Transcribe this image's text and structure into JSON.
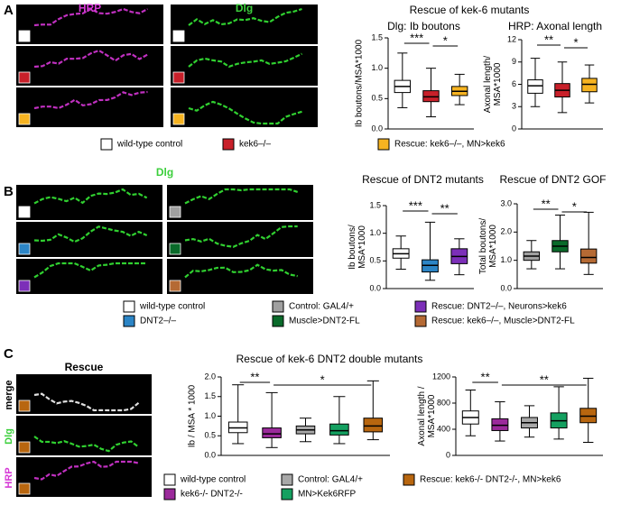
{
  "panels": [
    {
      "label": "A",
      "images": {
        "titles": [
          "HRP",
          "Dlg"
        ],
        "title_colors": [
          "#d63ad6",
          "#3ccf3c"
        ],
        "columns": [
          {
            "row_colors": [
              "#ffffff",
              "#c8202a",
              "#f6b321"
            ],
            "stains": [
              "#c030c0",
              "#c030c0",
              "#c030c0"
            ]
          },
          {
            "row_colors": [
              "#ffffff",
              "#c8202a",
              "#f6b321"
            ],
            "stains": [
              "#30d030",
              "#30d030",
              "#30d030"
            ]
          }
        ]
      },
      "title": "Rescue of kek-6 mutants",
      "charts": [
        {
          "type": "box",
          "title": "Dlg: Ib boutons",
          "y_label": [
            "Ib boutons/MSA*1000"
          ],
          "ylim": [
            0,
            1.5
          ],
          "yticks": [
            {
              "value": 0,
              "label": "0.0"
            },
            0.5,
            {
              "value": 1,
              "label": "1.0"
            },
            1.5
          ],
          "boxes": [
            {
              "color": "#ffffff",
              "min": 0.35,
              "q1": 0.6,
              "median": 0.7,
              "q3": 0.8,
              "max": 1.25
            },
            {
              "color": "#c8202a",
              "min": 0.2,
              "q1": 0.45,
              "median": 0.53,
              "q3": 0.63,
              "max": 1.0
            },
            {
              "color": "#f6b321",
              "min": 0.4,
              "q1": 0.55,
              "median": 0.62,
              "q3": 0.7,
              "max": 0.9
            }
          ],
          "significance": [
            "***",
            "*"
          ]
        },
        {
          "type": "box",
          "title": "HRP: Axonal length",
          "y_label": [
            "Axonal length/",
            "MSA*1000"
          ],
          "ylim": [
            0,
            12
          ],
          "yticks": [
            0,
            3,
            6,
            9,
            12
          ],
          "boxes": [
            {
              "color": "#ffffff",
              "min": 3,
              "q1": 4.8,
              "median": 5.8,
              "q3": 6.6,
              "max": 9.5
            },
            {
              "color": "#c8202a",
              "min": 2.2,
              "q1": 4.3,
              "median": 5.2,
              "q3": 6.1,
              "max": 9
            },
            {
              "color": "#f6b321",
              "min": 3.5,
              "q1": 5,
              "median": 6,
              "q3": 6.8,
              "max": 8.6
            }
          ],
          "significance": [
            "**",
            "*"
          ]
        }
      ],
      "legend": [
        {
          "name": "wild-type control",
          "color": "#ffffff"
        },
        {
          "name": "kek6–/–",
          "color": "#c8202a"
        },
        {
          "name": "Rescue:  kek6–/–, MN>kek6",
          "color": "#f6b321"
        }
      ]
    },
    {
      "label": "B",
      "images": {
        "titles": [
          "Dlg"
        ],
        "title_colors": [
          "#3ccf3c"
        ],
        "columns": [
          {
            "row_colors": [
              "#ffffff",
              "#2c85c6",
              "#7c2fb8"
            ],
            "stains": [
              "#30d030",
              "#30d030",
              "#30d030"
            ]
          },
          {
            "row_colors": [
              "#a0a0a0",
              "#0a6a2a",
              "#b56a34"
            ],
            "stains": [
              "#30d030",
              "#30d030",
              "#30d030"
            ]
          }
        ]
      },
      "charts": [
        {
          "type": "box",
          "title": "Rescue of DNT2 mutants",
          "y_label": [
            "Ib boutons/",
            "MSA*1000"
          ],
          "ylim": [
            0,
            1.5
          ],
          "yticks": [
            {
              "value": 0,
              "label": "0.0"
            },
            0.5,
            {
              "value": 1,
              "label": "1.0"
            },
            1.5
          ],
          "boxes": [
            {
              "color": "#ffffff",
              "min": 0.35,
              "q1": 0.55,
              "median": 0.63,
              "q3": 0.72,
              "max": 0.95
            },
            {
              "color": "#2c85c6",
              "min": 0.15,
              "q1": 0.3,
              "median": 0.42,
              "q3": 0.52,
              "max": 1.2
            },
            {
              "color": "#7c2fb8",
              "min": 0.25,
              "q1": 0.45,
              "median": 0.58,
              "q3": 0.72,
              "max": 0.9
            }
          ],
          "significance": [
            "***",
            "**"
          ]
        },
        {
          "type": "box",
          "title": "Rescue of DNT2 GOF",
          "y_label": [
            "Total boutons/",
            "MSA*1000"
          ],
          "ylim": [
            0,
            3
          ],
          "yticks": [
            {
              "value": 0,
              "label": "0.0"
            },
            {
              "value": 1,
              "label": "1.0"
            },
            {
              "value": 2,
              "label": "2.0"
            },
            {
              "value": 3,
              "label": "3.0"
            }
          ],
          "boxes": [
            {
              "color": "#a0a0a0",
              "min": 0.7,
              "q1": 1.0,
              "median": 1.15,
              "q3": 1.3,
              "max": 1.7
            },
            {
              "color": "#0a6a2a",
              "min": 0.7,
              "q1": 1.3,
              "median": 1.5,
              "q3": 1.7,
              "max": 2.6
            },
            {
              "color": "#b56a34",
              "min": 0.5,
              "q1": 0.9,
              "median": 1.1,
              "q3": 1.4,
              "max": 2.7
            }
          ],
          "significance": [
            "**",
            "*"
          ]
        }
      ],
      "legend": [
        {
          "name": "wild-type control",
          "color": "#ffffff"
        },
        {
          "name": "Control: GAL4/+",
          "color": "#a0a0a0"
        },
        {
          "name": "Rescue: DNT2–/–, Neurons>kek6",
          "color": "#7c2fb8"
        },
        {
          "name": "DNT2–/–",
          "color": "#2c85c6"
        },
        {
          "name": "Muscle>DNT2-FL",
          "color": "#0a6a2a"
        },
        {
          "name": "Rescue: kek6–/–, Muscle>DNT2-FL",
          "color": "#b56a34"
        }
      ]
    },
    {
      "label": "C",
      "images": {
        "titles": [
          "Rescue"
        ],
        "title_colors": [
          "#000000"
        ],
        "row_labels": [
          "merge",
          "Dlg",
          "HRP"
        ],
        "row_label_colors": [
          "#000000",
          "#3ccf3c",
          "#d63ad6"
        ],
        "columns": [
          {
            "row_colors": [
              "#b8660f",
              "#b8660f",
              "#b8660f"
            ],
            "stains": [
              "#e0e0e0",
              "#30d030",
              "#c030c0"
            ]
          }
        ]
      },
      "title": "Rescue of kek-6 DNT2 double mutants",
      "charts": [
        {
          "type": "box",
          "y_label": [
            "Ib / MSA * 1000"
          ],
          "ylim": [
            0,
            2
          ],
          "yticks": [
            {
              "value": 0,
              "label": "0.0"
            },
            0.5,
            {
              "value": 1,
              "label": "1.0"
            },
            1.5,
            {
              "value": 2,
              "label": "2.0"
            }
          ],
          "boxes": [
            {
              "color": "#ffffff",
              "min": 0.3,
              "q1": 0.58,
              "median": 0.7,
              "q3": 0.85,
              "max": 1.8
            },
            {
              "color": "#9b2a9b",
              "min": 0.2,
              "q1": 0.45,
              "median": 0.55,
              "q3": 0.7,
              "max": 1.6
            },
            {
              "color": "#a8a8a8",
              "min": 0.35,
              "q1": 0.55,
              "median": 0.65,
              "q3": 0.75,
              "max": 0.95
            },
            {
              "color": "#14a060",
              "min": 0.3,
              "q1": 0.52,
              "median": 0.63,
              "q3": 0.8,
              "max": 1.5
            },
            {
              "color": "#b8660f",
              "min": 0.4,
              "q1": 0.6,
              "median": 0.75,
              "q3": 0.95,
              "max": 1.9
            }
          ],
          "significance": [
            "**",
            "*"
          ]
        },
        {
          "type": "box",
          "y_label": [
            "Axonal length /",
            "MSA*1000"
          ],
          "ylim": [
            0,
            1200
          ],
          "yticks": [
            0,
            400,
            800,
            1200
          ],
          "boxes": [
            {
              "color": "#ffffff",
              "min": 300,
              "q1": 480,
              "median": 580,
              "q3": 680,
              "max": 1000
            },
            {
              "color": "#9b2a9b",
              "min": 220,
              "q1": 380,
              "median": 460,
              "q3": 560,
              "max": 820
            },
            {
              "color": "#a8a8a8",
              "min": 280,
              "q1": 420,
              "median": 500,
              "q3": 580,
              "max": 760
            },
            {
              "color": "#14a060",
              "min": 250,
              "q1": 420,
              "median": 530,
              "q3": 650,
              "max": 1050
            },
            {
              "color": "#b8660f",
              "min": 200,
              "q1": 500,
              "median": 600,
              "q3": 720,
              "max": 1180
            }
          ],
          "significance": [
            "**",
            "**"
          ]
        }
      ],
      "legend": [
        {
          "name": "wild-type control",
          "color": "#ffffff"
        },
        {
          "name": "Control: GAL4/+",
          "color": "#a8a8a8"
        },
        {
          "name": "Rescue: kek6-/- DNT2-/-, MN>kek6",
          "color": "#b8660f"
        },
        {
          "name": "kek6-/- DNT2-/-",
          "color": "#9b2a9b"
        },
        {
          "name": "MN>Kek6RFP",
          "color": "#14a060"
        }
      ]
    }
  ]
}
